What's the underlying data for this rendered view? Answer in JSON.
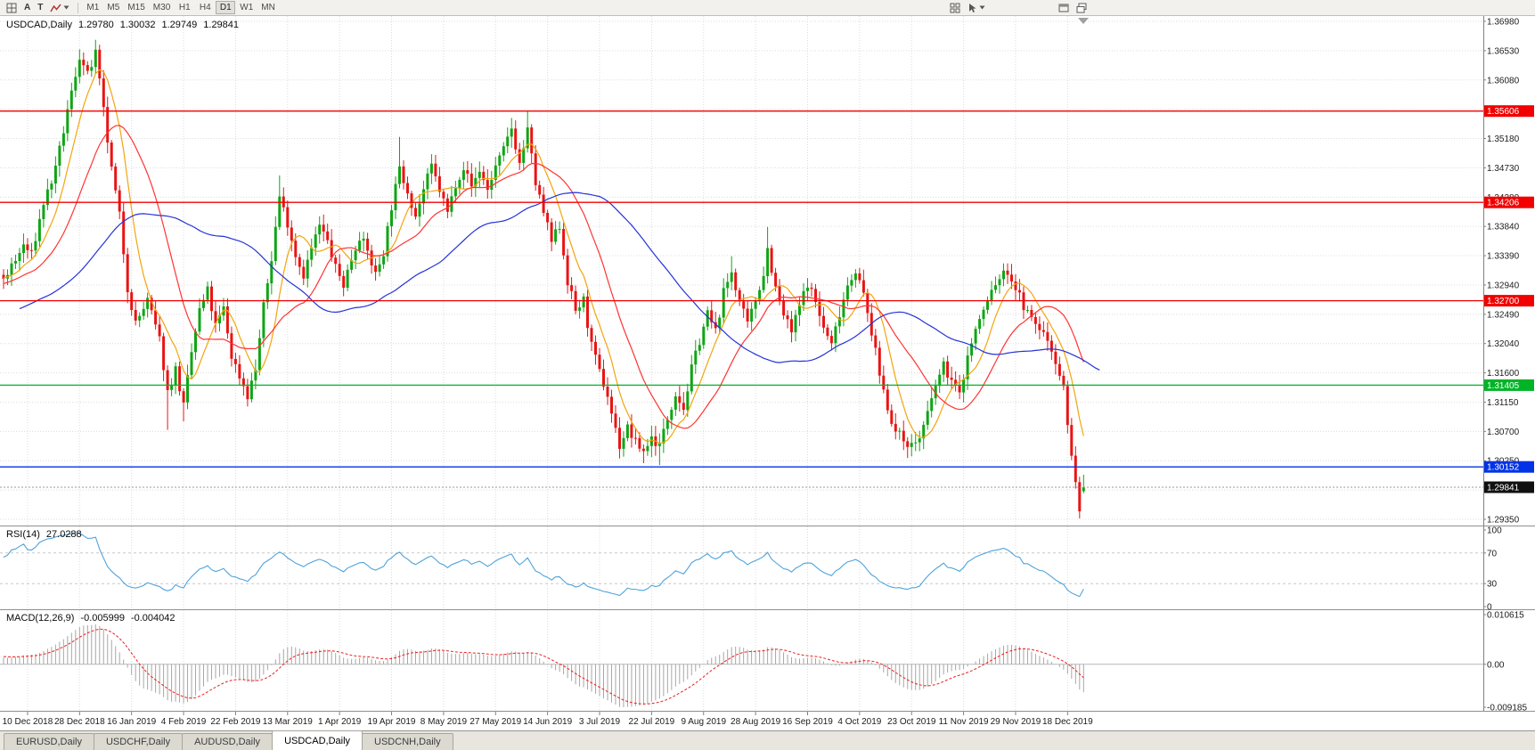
{
  "toolbar": {
    "a_label": "A",
    "t_label": "T",
    "timeframes": [
      "M1",
      "M5",
      "M15",
      "M30",
      "H1",
      "H4",
      "D1",
      "W1",
      "MN"
    ],
    "active_timeframe": "D1",
    "left_icons": [
      "grid-icon",
      "letter-a-icon",
      "letter-t-icon",
      "zigzag-icon",
      "caret-down-icon"
    ],
    "right_icons": [
      "tile-windows-icon",
      "cursor-icon",
      "caret-down-icon",
      "new-chart-icon",
      "cascade-windows-icon"
    ]
  },
  "chart": {
    "symbol_title": "USDCAD,Daily",
    "ohlc_text": {
      "open": "1.29780",
      "high": "1.30032",
      "low": "1.29749",
      "close": "1.29841"
    },
    "price_axis_labels": [
      "1.36980",
      "1.36530",
      "1.36080",
      "1.35630",
      "1.35180",
      "1.34730",
      "1.34280",
      "1.33840",
      "1.33390",
      "1.32940",
      "1.32490",
      "1.32040",
      "1.31600",
      "1.31150",
      "1.30700",
      "1.30250",
      "1.29800",
      "1.29350"
    ],
    "date_axis_labels": [
      "10 Dec 2018",
      "28 Dec 2018",
      "16 Jan 2019",
      "4 Feb 2019",
      "22 Feb 2019",
      "13 Mar 2019",
      "1 Apr 2019",
      "19 Apr 2019",
      "8 May 2019",
      "27 May 2019",
      "14 Jun 2019",
      "3 Jul 2019",
      "22 Jul 2019",
      "9 Aug 2019",
      "28 Aug 2019",
      "16 Sep 2019",
      "4 Oct 2019",
      "23 Oct 2019",
      "11 Nov 2019",
      "29 Nov 2019",
      "18 Dec 2019"
    ],
    "horizontal_lines": [
      {
        "price": 1.35606,
        "label": "1.35606",
        "color": "#f20000"
      },
      {
        "price": 1.34206,
        "label": "1.34206",
        "color": "#f20000"
      },
      {
        "price": 1.327,
        "label": "1.32700",
        "color": "#f20000"
      },
      {
        "price": 1.31405,
        "label": "1.31405",
        "color": "#00b428"
      },
      {
        "price": 1.30152,
        "label": "1.30152",
        "color": "#0033e6"
      }
    ],
    "current_price_tag": {
      "price": 1.29841,
      "label": "1.29841",
      "bg": "#101010"
    },
    "colors": {
      "up": "#0fa514",
      "down": "#e81414",
      "ma_fast": "#f2a50e",
      "ma_mid": "#ff3333",
      "ma_slow": "#2433d8",
      "grid": "#dcdcdc",
      "axis_text": "#1c1c1c"
    }
  },
  "rsi_panel": {
    "name": "RSI(14)",
    "value": "27.0288",
    "axis_labels": [
      "100",
      "70",
      "30",
      "0"
    ],
    "level_lines": [
      70,
      30
    ],
    "line_color": "#4da3dc"
  },
  "macd_panel": {
    "name": "MACD(12,26,9)",
    "value_main": "-0.005999",
    "value_signal": "-0.004042",
    "axis_labels": [
      "0.010615",
      "0.00",
      "-0.009185"
    ],
    "histogram_color": "#a6a6a6",
    "signal_color": "#e62020"
  },
  "tabs": {
    "items": [
      "EURUSD,Daily",
      "USDCHF,Daily",
      "AUDUSD,Daily",
      "USDCAD,Daily",
      "USDCNH,Daily"
    ],
    "active": "USDCAD,Daily"
  },
  "chart_data": {
    "type": "candlestick",
    "symbol": "USDCAD",
    "timeframe": "Daily",
    "visible_bars": 271,
    "price_top": 1.3698,
    "price_bottom": 1.2935,
    "last_bar": {
      "open": 1.2978,
      "high": 1.30032,
      "low": 1.29749,
      "close": 1.29841
    },
    "anchors": [
      [
        -55,
        1.316
      ],
      [
        -40,
        1.3215
      ],
      [
        -25,
        1.3262
      ],
      [
        -10,
        1.33
      ],
      [
        0,
        1.3305
      ],
      [
        3,
        1.333
      ],
      [
        5,
        1.3355
      ],
      [
        7,
        1.334
      ],
      [
        10,
        1.342
      ],
      [
        13,
        1.347
      ],
      [
        16,
        1.356
      ],
      [
        19,
        1.3645
      ],
      [
        21,
        1.3615
      ],
      [
        23,
        1.3648
      ],
      [
        25,
        1.356
      ],
      [
        27,
        1.347
      ],
      [
        29,
        1.34
      ],
      [
        31,
        1.329
      ],
      [
        33,
        1.3235
      ],
      [
        36,
        1.327
      ],
      [
        39,
        1.321
      ],
      [
        41,
        1.313
      ],
      [
        43,
        1.3165
      ],
      [
        45,
        1.3108
      ],
      [
        47,
        1.319
      ],
      [
        49,
        1.3255
      ],
      [
        51,
        1.3285
      ],
      [
        53,
        1.323
      ],
      [
        55,
        1.3258
      ],
      [
        57,
        1.3185
      ],
      [
        59,
        1.3155
      ],
      [
        61,
        1.3125
      ],
      [
        63,
        1.3165
      ],
      [
        65,
        1.326
      ],
      [
        67,
        1.3335
      ],
      [
        69,
        1.343
      ],
      [
        71,
        1.339
      ],
      [
        73,
        1.334
      ],
      [
        75,
        1.331
      ],
      [
        77,
        1.335
      ],
      [
        79,
        1.3385
      ],
      [
        81,
        1.336
      ],
      [
        83,
        1.332
      ],
      [
        85,
        1.3295
      ],
      [
        87,
        1.3335
      ],
      [
        89,
        1.337
      ],
      [
        91,
        1.3345
      ],
      [
        93,
        1.331
      ],
      [
        95,
        1.3345
      ],
      [
        97,
        1.3415
      ],
      [
        99,
        1.347
      ],
      [
        101,
        1.344
      ],
      [
        103,
        1.34
      ],
      [
        105,
        1.344
      ],
      [
        107,
        1.3475
      ],
      [
        109,
        1.344
      ],
      [
        111,
        1.3405
      ],
      [
        113,
        1.345
      ],
      [
        115,
        1.3475
      ],
      [
        117,
        1.3445
      ],
      [
        119,
        1.347
      ],
      [
        121,
        1.344
      ],
      [
        123,
        1.3475
      ],
      [
        125,
        1.35
      ],
      [
        127,
        1.3535
      ],
      [
        129,
        1.348
      ],
      [
        131,
        1.353
      ],
      [
        133,
        1.345
      ],
      [
        135,
        1.3405
      ],
      [
        137,
        1.336
      ],
      [
        139,
        1.3385
      ],
      [
        141,
        1.33
      ],
      [
        143,
        1.3255
      ],
      [
        145,
        1.327
      ],
      [
        147,
        1.32
      ],
      [
        149,
        1.316
      ],
      [
        151,
        1.3125
      ],
      [
        153,
        1.3072
      ],
      [
        154,
        1.3048
      ],
      [
        156,
        1.3075
      ],
      [
        158,
        1.3052
      ],
      [
        160,
        1.304
      ],
      [
        162,
        1.306
      ],
      [
        164,
        1.3048
      ],
      [
        166,
        1.309
      ],
      [
        168,
        1.313
      ],
      [
        170,
        1.3105
      ],
      [
        172,
        1.3165
      ],
      [
        174,
        1.321
      ],
      [
        176,
        1.325
      ],
      [
        178,
        1.3222
      ],
      [
        180,
        1.3282
      ],
      [
        182,
        1.3315
      ],
      [
        184,
        1.3268
      ],
      [
        186,
        1.3232
      ],
      [
        188,
        1.3272
      ],
      [
        190,
        1.3312
      ],
      [
        191,
        1.335
      ],
      [
        193,
        1.3288
      ],
      [
        195,
        1.3248
      ],
      [
        197,
        1.3222
      ],
      [
        199,
        1.3262
      ],
      [
        201,
        1.3298
      ],
      [
        203,
        1.3268
      ],
      [
        205,
        1.3228
      ],
      [
        207,
        1.3202
      ],
      [
        209,
        1.3252
      ],
      [
        211,
        1.3295
      ],
      [
        213,
        1.3318
      ],
      [
        215,
        1.3278
      ],
      [
        217,
        1.3222
      ],
      [
        219,
        1.3158
      ],
      [
        221,
        1.3108
      ],
      [
        223,
        1.3068
      ],
      [
        225,
        1.3058
      ],
      [
        227,
        1.3048
      ],
      [
        229,
        1.306
      ],
      [
        231,
        1.3095
      ],
      [
        233,
        1.314
      ],
      [
        235,
        1.317
      ],
      [
        237,
        1.3148
      ],
      [
        239,
        1.3125
      ],
      [
        241,
        1.3185
      ],
      [
        243,
        1.3225
      ],
      [
        245,
        1.3255
      ],
      [
        247,
        1.3285
      ],
      [
        249,
        1.3305
      ],
      [
        251,
        1.3315
      ],
      [
        253,
        1.329
      ],
      [
        255,
        1.3262
      ],
      [
        257,
        1.324
      ],
      [
        259,
        1.3228
      ],
      [
        261,
        1.321
      ],
      [
        263,
        1.318
      ],
      [
        265,
        1.3135
      ],
      [
        266,
        1.3085
      ],
      [
        267,
        1.3032
      ],
      [
        268,
        1.2988
      ],
      [
        269,
        1.2952
      ],
      [
        270,
        1.29841
      ]
    ],
    "spikes": [
      {
        "bar": 19,
        "high": 1.3655
      },
      {
        "bar": 23,
        "high": 1.3662
      },
      {
        "bar": 41,
        "low": 1.3072
      },
      {
        "bar": 45,
        "low": 1.3085
      },
      {
        "bar": 69,
        "high": 1.3462
      },
      {
        "bar": 99,
        "high": 1.3521
      },
      {
        "bar": 127,
        "high": 1.3548
      },
      {
        "bar": 131,
        "high": 1.356
      },
      {
        "bar": 154,
        "low": 1.3038
      },
      {
        "bar": 160,
        "low": 1.3021
      },
      {
        "bar": 164,
        "low": 1.3018
      },
      {
        "bar": 182,
        "high": 1.3338
      },
      {
        "bar": 191,
        "high": 1.3383
      },
      {
        "bar": 227,
        "low": 1.3042
      },
      {
        "bar": 269,
        "low": 1.2937
      }
    ],
    "overlays": [
      {
        "type": "sma",
        "period": 8,
        "color_key": "ma_fast"
      },
      {
        "type": "sma",
        "period": 20,
        "color_key": "ma_mid"
      },
      {
        "type": "sma",
        "period": 50,
        "color_key": "ma_slow",
        "shift": 4
      }
    ],
    "indicators": [
      {
        "type": "rsi",
        "period": 14
      },
      {
        "type": "macd",
        "fast": 12,
        "slow": 26,
        "signal": 9
      }
    ]
  }
}
